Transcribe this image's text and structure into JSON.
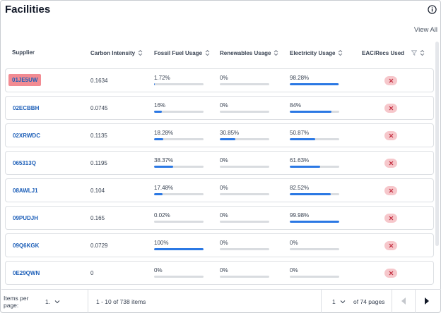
{
  "header": {
    "title": "Facilities",
    "view_all": "View All",
    "info_icon": "info-circle-icon"
  },
  "columns": {
    "supplier": "Supplier",
    "carbon_intensity": "Carbon Intensity",
    "fossil_fuel": "Fossil Fuel Usage",
    "renewables": "Renewables Usage",
    "electricity": "Electricity Usage",
    "eac": "EAC/Recs Used"
  },
  "rows": [
    {
      "supplier": "01JE5UW",
      "highlight": true,
      "carbon": "0.1634",
      "fossil": "1.72%",
      "fossil_v": 1.72,
      "renew": "0%",
      "renew_v": 0,
      "elec": "98.28%",
      "elec_v": 98.28
    },
    {
      "supplier": "02ECBBH",
      "highlight": false,
      "carbon": "0.0745",
      "fossil": "16%",
      "fossil_v": 16,
      "renew": "0%",
      "renew_v": 0,
      "elec": "84%",
      "elec_v": 84
    },
    {
      "supplier": "02XRWDC",
      "highlight": false,
      "carbon": "0.1135",
      "fossil": "18.28%",
      "fossil_v": 18.28,
      "renew": "30.85%",
      "renew_v": 30.85,
      "elec": "50.87%",
      "elec_v": 50.87
    },
    {
      "supplier": "065313Q",
      "highlight": false,
      "carbon": "0.1195",
      "fossil": "38.37%",
      "fossil_v": 38.37,
      "renew": "0%",
      "renew_v": 0,
      "elec": "61.63%",
      "elec_v": 61.63
    },
    {
      "supplier": "08AWLJ1",
      "highlight": false,
      "carbon": "0.104",
      "fossil": "17.48%",
      "fossil_v": 17.48,
      "renew": "0%",
      "renew_v": 0,
      "elec": "82.52%",
      "elec_v": 82.52
    },
    {
      "supplier": "09PUDJH",
      "highlight": false,
      "carbon": "0.165",
      "fossil": "0.02%",
      "fossil_v": 0.02,
      "renew": "0%",
      "renew_v": 0,
      "elec": "99.98%",
      "elec_v": 99.98
    },
    {
      "supplier": "09Q6KGK",
      "highlight": false,
      "carbon": "0.0729",
      "fossil": "100%",
      "fossil_v": 100,
      "renew": "0%",
      "renew_v": 0,
      "elec": "0%",
      "elec_v": 0
    },
    {
      "supplier": "0E29QWN",
      "highlight": false,
      "carbon": "0",
      "fossil": "0%",
      "fossil_v": 0,
      "renew": "0%",
      "renew_v": 0,
      "elec": "0%",
      "elec_v": 0
    }
  ],
  "colors": {
    "accent": "#2b78e4",
    "link": "#1d5fb8",
    "highlight": "#f28b92",
    "x_badge": "#f6c7cb",
    "x_mark": "#c0283a"
  },
  "footer": {
    "items_per_page_label": "Items per page:",
    "page_size": "1.",
    "range": "1 - 10 of 738 items",
    "page": "1",
    "of_pages": "of 74 pages"
  }
}
